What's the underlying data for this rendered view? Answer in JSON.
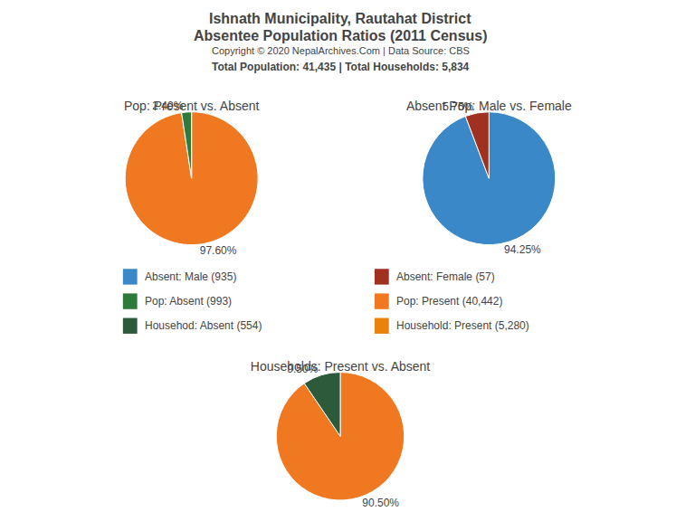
{
  "title": "Ishnath Municipality, Rautahat District",
  "subtitle": "Absentee Population Ratios (2011 Census)",
  "annotations": [
    "Copyright © 2020 NepalArchives.Com | Data Source: CBS",
    "Total Population: 41,435 | Total Households: 5,834"
  ],
  "legend_columns": [
    [
      {
        "label": "Absent: Male (935)",
        "color": "#3a88c8"
      },
      {
        "label": "Pop: Absent (993)",
        "color": "#2d7a3a"
      },
      {
        "label": "Househod: Absent (554)",
        "color": "#2d5a3a"
      }
    ],
    [
      {
        "label": "Absent: Female (57)",
        "color": "#a03020"
      },
      {
        "label": "Pop: Present (40,442)",
        "color": "#f07820"
      },
      {
        "label": "Household: Present (5,280)",
        "color": "#e8820a"
      }
    ]
  ],
  "chart_data": [
    {
      "type": "pie",
      "title": "Pop: Present vs. Absent",
      "values": [
        97.6,
        2.4
      ],
      "value_labels": [
        "97.60%",
        "2.40%"
      ],
      "colors": [
        "#f07820",
        "#2d7a3a"
      ],
      "data_labels": true
    },
    {
      "type": "pie",
      "title": "Absent Pop: Male vs. Female",
      "values": [
        94.25,
        5.75
      ],
      "value_labels": [
        "94.25%",
        "5.75%"
      ],
      "colors": [
        "#3a88c8",
        "#a03020"
      ],
      "data_labels": true
    },
    {
      "type": "pie",
      "title": "Households: Present vs. Absent",
      "values": [
        90.5,
        9.5
      ],
      "value_labels": [
        "90.50%",
        "9.50%"
      ],
      "colors": [
        "#f07820",
        "#2d5a3a"
      ],
      "data_labels": true
    }
  ]
}
